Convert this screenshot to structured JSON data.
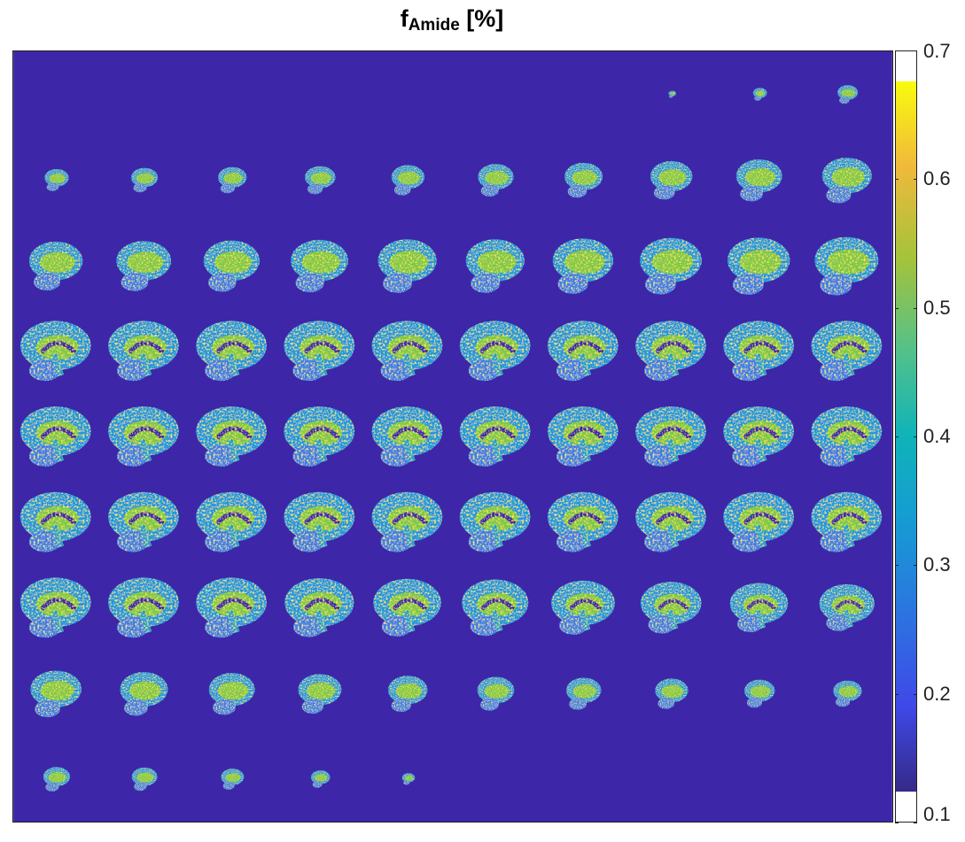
{
  "figure": {
    "title_main": "f",
    "title_sub": "Amide",
    "title_unit": "[%]"
  },
  "colors": {
    "background_value_color": "#3e26a8",
    "colormap": "parula",
    "border": "#222222"
  },
  "chart_data": {
    "type": "heatmap",
    "title": "f_Amide [%]",
    "colorbar": {
      "range": [
        0.1,
        0.7
      ],
      "ticks": [
        0.1,
        0.2,
        0.3,
        0.4,
        0.5,
        0.6,
        0.7
      ],
      "tick_labels": [
        "0.1",
        "0.2",
        "0.3",
        "0.4",
        "0.5",
        "0.6",
        "0.7"
      ],
      "colormap": "parula"
    },
    "montage": {
      "rows": 9,
      "cols": 10,
      "content": "sagittal brain slices, lateral to lateral, with empty background cells at the start and end"
    }
  }
}
